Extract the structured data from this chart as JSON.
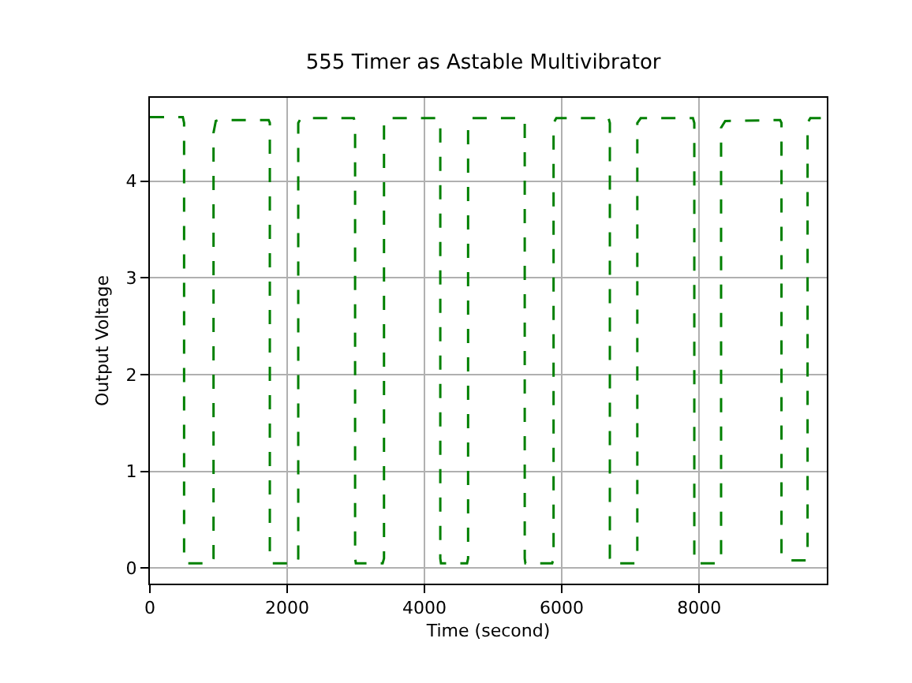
{
  "chart_data": {
    "type": "line",
    "title": "555 Timer as Astable Multivibrator",
    "xlabel": "Time (second)",
    "ylabel": "Output Voltage",
    "xlim": [
      0,
      9860
    ],
    "ylim": [
      -0.16,
      4.86
    ],
    "xticks": [
      0,
      2000,
      4000,
      6000,
      8000
    ],
    "yticks": [
      0,
      1,
      2,
      3,
      4
    ],
    "grid": true,
    "line_style": "dashed",
    "marker": "none",
    "series": [
      {
        "color": "#008000",
        "x": [
          0,
          480,
          498,
          498,
          510,
          910,
          927,
          927,
          960,
          1000,
          1730,
          1747,
          1747,
          1760,
          2150,
          2161,
          2161,
          2200,
          2970,
          2989,
          2989,
          3000,
          3390,
          3410,
          3410,
          3440,
          4210,
          4230,
          4230,
          4240,
          4620,
          4635,
          4635,
          4680,
          5440,
          5460,
          5460,
          5470,
          5860,
          5880,
          5880,
          5920,
          6680,
          6700,
          6700,
          6710,
          7080,
          7100,
          7100,
          7150,
          7910,
          7930,
          7930,
          7940,
          8300,
          8320,
          8320,
          8380,
          9180,
          9200,
          9200,
          9260,
          9560,
          9580,
          9580,
          9620,
          9860
        ],
        "values": [
          4.66,
          4.66,
          4.6,
          0.1,
          0.05,
          0.05,
          0.1,
          4.5,
          4.62,
          4.63,
          4.63,
          4.6,
          0.1,
          0.05,
          0.05,
          0.1,
          4.6,
          4.65,
          4.65,
          4.6,
          0.1,
          0.05,
          0.05,
          0.1,
          4.6,
          4.65,
          4.65,
          4.6,
          0.1,
          0.05,
          0.05,
          0.1,
          4.6,
          4.65,
          4.65,
          4.6,
          0.1,
          0.05,
          0.05,
          0.1,
          4.6,
          4.65,
          4.65,
          4.6,
          0.1,
          0.05,
          0.05,
          0.1,
          4.6,
          4.65,
          4.65,
          4.6,
          0.1,
          0.05,
          0.05,
          0.1,
          4.55,
          4.62,
          4.63,
          4.6,
          0.15,
          0.08,
          0.08,
          0.12,
          4.6,
          4.65,
          4.65
        ]
      }
    ]
  }
}
